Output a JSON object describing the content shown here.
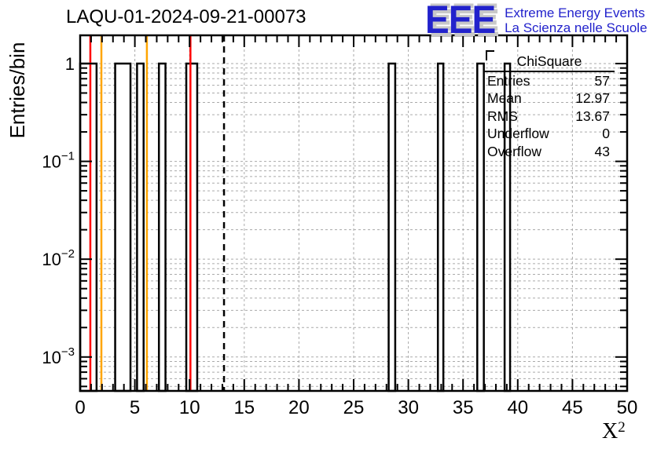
{
  "header": {
    "title": "LAQU-01-2024-09-21-00073",
    "logo": {
      "acronym": "EEE",
      "tagline_en": "Extreme Energy Events",
      "tagline_it": "La Scienza nelle Scuole",
      "color": "#2222cc",
      "shadow_color": "#c8c8c8"
    }
  },
  "stats_box": {
    "title": "ChiSquare",
    "rows": [
      {
        "label": "Entries",
        "value": "57"
      },
      {
        "label": "Mean",
        "value": "12.97"
      },
      {
        "label": "RMS",
        "value": "13.67"
      },
      {
        "label": "Underflow",
        "value": "0"
      },
      {
        "label": "Overflow",
        "value": "43"
      }
    ]
  },
  "axes": {
    "y_label": "Entries/bin",
    "x_label_base": "X",
    "x_label_sup": "2"
  },
  "chart_data": {
    "type": "bar",
    "title": "LAQU-01-2024-09-21-00073",
    "xlabel": "X^2",
    "ylabel": "Entries/bin",
    "xlim": [
      0,
      50
    ],
    "ylim": [
      0.00045,
      1.944
    ],
    "ylog": true,
    "grid": true,
    "grid_color": "#aaaaaa",
    "frame_color": "#000000",
    "bar_color": "#000000",
    "x_major_tick_step": 5,
    "x_minor_tick_step": 1,
    "x_tick_labels": [
      "0",
      "5",
      "10",
      "15",
      "20",
      "25",
      "30",
      "35",
      "40",
      "45",
      "50"
    ],
    "y_tick_labels": [
      {
        "value": 1,
        "base": "1",
        "sup": ""
      },
      {
        "value": 0.1,
        "base": "10",
        "sup": "−1"
      },
      {
        "value": 0.01,
        "base": "10",
        "sup": "−2"
      },
      {
        "value": 0.001,
        "base": "10",
        "sup": "−3"
      }
    ],
    "bars": [
      {
        "x0": 0.0,
        "x1": 1.5,
        "y": 1
      },
      {
        "x0": 3.2,
        "x1": 4.6,
        "y": 1
      },
      {
        "x0": 5.2,
        "x1": 5.8,
        "y": 1
      },
      {
        "x0": 7.2,
        "x1": 7.8,
        "y": 1
      },
      {
        "x0": 9.7,
        "x1": 10.7,
        "y": 1
      },
      {
        "x0": 28.2,
        "x1": 28.8,
        "y": 1
      },
      {
        "x0": 32.7,
        "x1": 33.2,
        "y": 1
      },
      {
        "x0": 36.3,
        "x1": 36.9,
        "y": 1
      },
      {
        "x0": 38.8,
        "x1": 39.3,
        "y": 1
      }
    ],
    "marker_lines": [
      {
        "x": 0.93,
        "color": "#ff0000",
        "style": "solid"
      },
      {
        "x": 1.94,
        "color": "#ffa500",
        "style": "solid"
      },
      {
        "x": 6.1,
        "color": "#ffa500",
        "style": "solid"
      },
      {
        "x": 10.08,
        "color": "#ff0000",
        "style": "solid"
      },
      {
        "x": 13.15,
        "color": "#000000",
        "style": "dashed"
      }
    ]
  }
}
